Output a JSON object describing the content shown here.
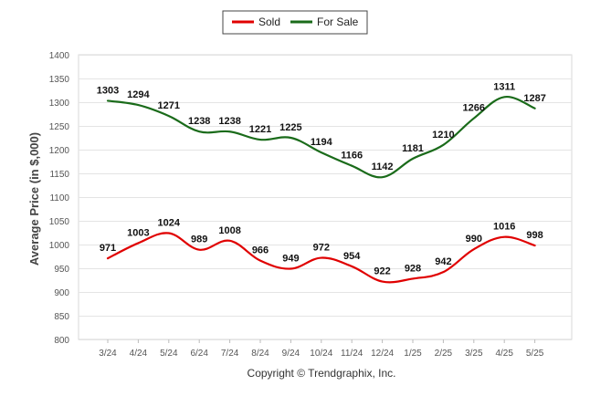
{
  "chart_data": {
    "type": "line",
    "categories": [
      "3/24",
      "4/24",
      "5/24",
      "6/24",
      "7/24",
      "8/24",
      "9/24",
      "10/24",
      "11/24",
      "12/24",
      "1/25",
      "2/25",
      "3/25",
      "4/25",
      "5/25"
    ],
    "series": [
      {
        "name": "Sold",
        "color": "#e00000",
        "values": [
          971,
          1003,
          1024,
          989,
          1008,
          966,
          949,
          972,
          954,
          922,
          928,
          942,
          990,
          1016,
          998
        ]
      },
      {
        "name": "For Sale",
        "color": "#1a6b1a",
        "values": [
          1303,
          1294,
          1271,
          1238,
          1238,
          1221,
          1225,
          1194,
          1166,
          1142,
          1181,
          1210,
          1266,
          1311,
          1287
        ]
      }
    ],
    "title": "",
    "xlabel": "",
    "ylabel": "Average Price (in $,000)",
    "ylim": [
      800,
      1400
    ],
    "yticks": [
      800,
      850,
      900,
      950,
      1000,
      1050,
      1100,
      1150,
      1200,
      1250,
      1300,
      1350,
      1400
    ],
    "grid": true,
    "legend_position": "top-center",
    "smooth": true
  },
  "credit": "Copyright © Trendgraphix, Inc."
}
